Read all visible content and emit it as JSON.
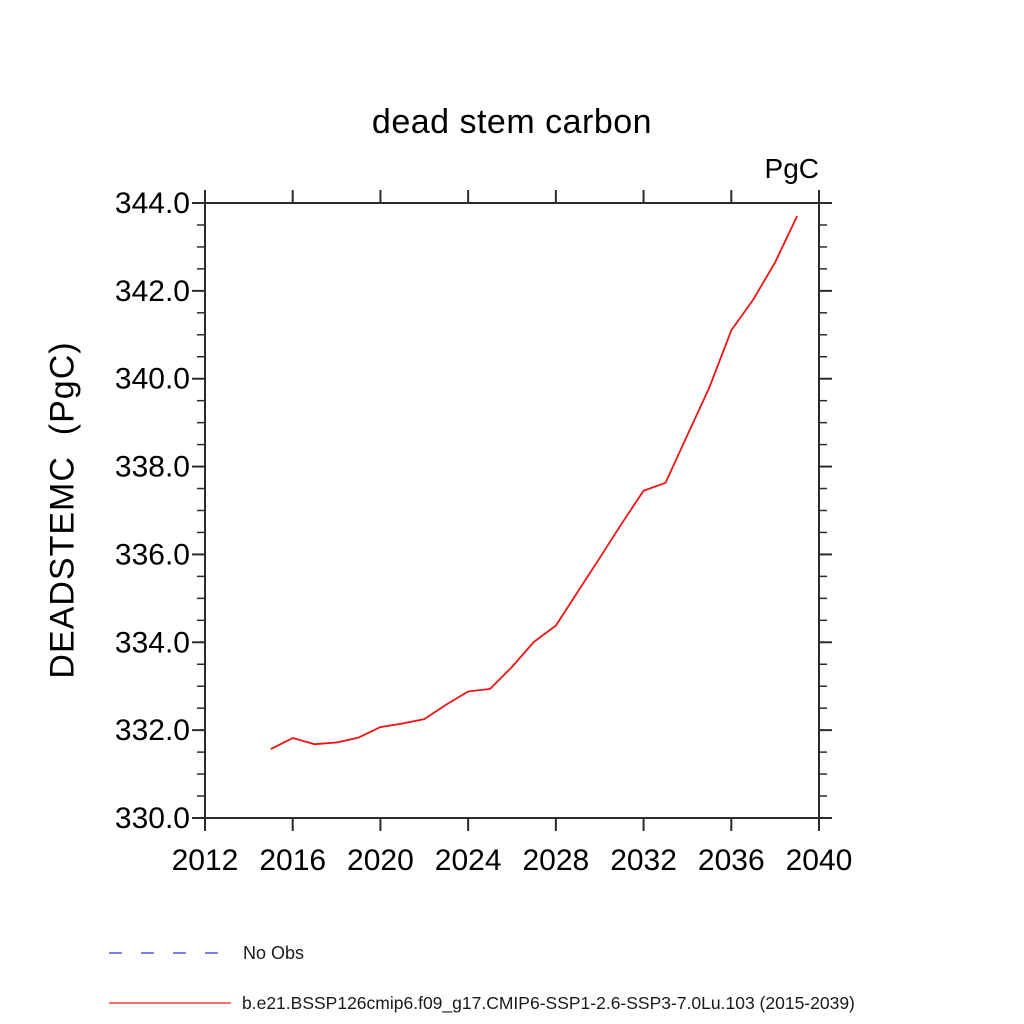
{
  "title": "dead stem carbon",
  "unit_label": "PgC",
  "y_axis_title": "DEADSTEMC  (PgC)",
  "colors": {
    "series_line": "#f01414",
    "no_obs_line": "#7f7fe8",
    "axis": "#2b2b2b",
    "text": "#000000"
  },
  "chart_data": {
    "type": "line",
    "title": "dead stem carbon",
    "xlabel": "",
    "ylabel": "DEADSTEMC  (PgC)",
    "unit": "PgC",
    "xlim": [
      2012,
      2040
    ],
    "ylim": [
      330.0,
      344.0
    ],
    "xticks": [
      2012,
      2016,
      2020,
      2024,
      2028,
      2032,
      2036,
      2040
    ],
    "xtick_labels": [
      "2012",
      "2016",
      "2020",
      "2024",
      "2028",
      "2032",
      "2036",
      "2040"
    ],
    "yticks": [
      330,
      332,
      334,
      336,
      338,
      340,
      342,
      344
    ],
    "ytick_labels": [
      "330.0",
      "332.0",
      "334.0",
      "336.0",
      "338.0",
      "340.0",
      "342.0",
      "344.0"
    ],
    "y_minor_step": 0.5,
    "grid": false,
    "legend_position": "bottom-left",
    "x": [
      2015,
      2016,
      2017,
      2018,
      2019,
      2020,
      2021,
      2022,
      2023,
      2024,
      2025,
      2026,
      2027,
      2028,
      2029,
      2030,
      2031,
      2032,
      2033,
      2034,
      2035,
      2036,
      2037,
      2038,
      2039
    ],
    "series": [
      {
        "name": "b.e21.BSSP126cmip6.f09_g17.CMIP6-SSP1-2.6-SSP3-7.0Lu.103 (2015-2039)",
        "values": [
          331.57,
          331.82,
          331.68,
          331.72,
          331.83,
          332.07,
          332.15,
          332.25,
          332.58,
          332.88,
          332.94,
          333.44,
          334.01,
          334.38,
          335.15,
          335.92,
          336.7,
          337.45,
          337.63,
          338.72,
          339.8,
          341.1,
          341.8,
          342.65,
          343.7
        ]
      }
    ]
  },
  "legend": {
    "items": [
      {
        "label": "No Obs",
        "style": "dashed",
        "color": "#7f7fe8"
      },
      {
        "label": "b.e21.BSSP126cmip6.f09_g17.CMIP6-SSP1-2.6-SSP3-7.0Lu.103 (2015-2039)",
        "style": "solid",
        "color": "#f04040"
      }
    ]
  }
}
